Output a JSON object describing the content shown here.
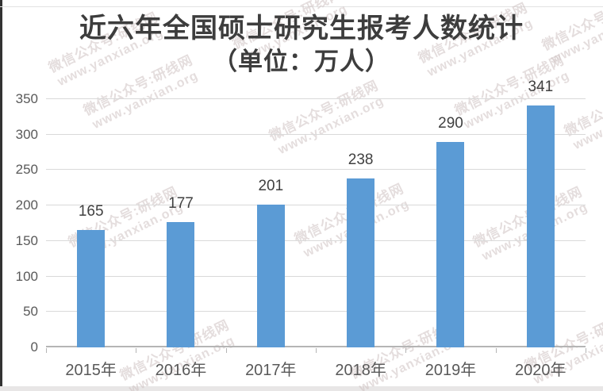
{
  "title": {
    "line1": "近六年全国硕士研究生报考人数统计",
    "line2": "（单位：万人）"
  },
  "watermark": {
    "line1": "微信公众号:研线网",
    "line2": "www.yanxian.org"
  },
  "chart_data": {
    "type": "bar",
    "title": "近六年全国硕士研究生报考人数统计",
    "subtitle": "（单位：万人）",
    "categories": [
      "2015年",
      "2016年",
      "2017年",
      "2018年",
      "2019年",
      "2020年"
    ],
    "values": [
      165,
      177,
      201,
      238,
      290,
      341
    ],
    "xlabel": "",
    "ylabel": "",
    "ylim": [
      0,
      350
    ],
    "yticks": [
      0,
      50,
      100,
      150,
      200,
      250,
      300,
      350
    ],
    "grid": true,
    "legend": "none",
    "bar_color": "#5B9BD5",
    "gridline_color": "#d9d9d9",
    "axis_color": "#b5b5b5",
    "label_color": "#595959"
  }
}
